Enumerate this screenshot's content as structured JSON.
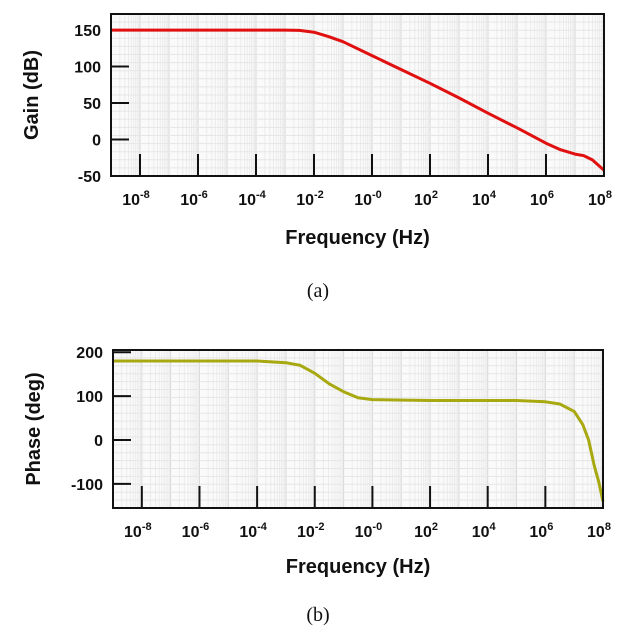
{
  "chart_data": [
    {
      "type": "line",
      "panel_label": "(a)",
      "xlabel": "Frequency (Hz)",
      "ylabel": "Gain (dB)",
      "xscale": "log",
      "xlim_log10": [
        -9,
        8
      ],
      "ylim": [
        -50,
        172
      ],
      "xtick_labels": [
        "10",
        "10",
        "10",
        "10",
        "10",
        "10",
        "10",
        "10",
        "10"
      ],
      "xtick_exponents": [
        "-8",
        "-6",
        "-4",
        "-2",
        "-0",
        "2",
        "4",
        "6",
        "8"
      ],
      "xtick_values_log10": [
        -8,
        -6,
        -4,
        -2,
        0,
        2,
        4,
        6,
        8
      ],
      "ytick_labels": [
        "150",
        "100",
        "50",
        "0",
        "-50"
      ],
      "ytick_values": [
        150,
        100,
        50,
        0,
        -50
      ],
      "grid": true,
      "color": "#e01010",
      "series": [
        {
          "name": "Gain",
          "x_log10": [
            -9,
            -3,
            -2.5,
            -2,
            -1.5,
            -1,
            0,
            1,
            2,
            3,
            4,
            5,
            6,
            6.5,
            7,
            7.3,
            7.6,
            8
          ],
          "y": [
            150,
            150,
            149.5,
            147,
            141,
            134,
            115,
            96,
            77,
            57,
            36,
            16,
            -5,
            -14,
            -20,
            -22,
            -28,
            -42
          ]
        }
      ]
    },
    {
      "type": "line",
      "panel_label": "(b)",
      "xlabel": "Frequency (Hz)",
      "ylabel": "Phase (deg)",
      "xscale": "log",
      "xlim_log10": [
        -9,
        8
      ],
      "ylim": [
        -155,
        205
      ],
      "xtick_labels": [
        "10",
        "10",
        "10",
        "10",
        "10",
        "10",
        "10",
        "10",
        "10"
      ],
      "xtick_exponents": [
        "-8",
        "-6",
        "-4",
        "-2",
        "-0",
        "2",
        "4",
        "6",
        "8"
      ],
      "xtick_values_log10": [
        -8,
        -6,
        -4,
        -2,
        0,
        2,
        4,
        6,
        8
      ],
      "ytick_labels": [
        "200",
        "100",
        "0",
        "-100"
      ],
      "ytick_values": [
        200,
        100,
        0,
        -100
      ],
      "grid": true,
      "color": "#a8a810",
      "series": [
        {
          "name": "Phase",
          "x_log10": [
            -9,
            -4,
            -3,
            -2.5,
            -2,
            -1.5,
            -1,
            -0.5,
            0,
            2,
            5,
            6,
            6.5,
            7,
            7.3,
            7.5,
            7.7,
            7.85,
            8
          ],
          "y": [
            180,
            180,
            176,
            170,
            152,
            128,
            110,
            96,
            92,
            90,
            90,
            87,
            82,
            65,
            35,
            0,
            -60,
            -95,
            -140
          ]
        }
      ]
    }
  ]
}
